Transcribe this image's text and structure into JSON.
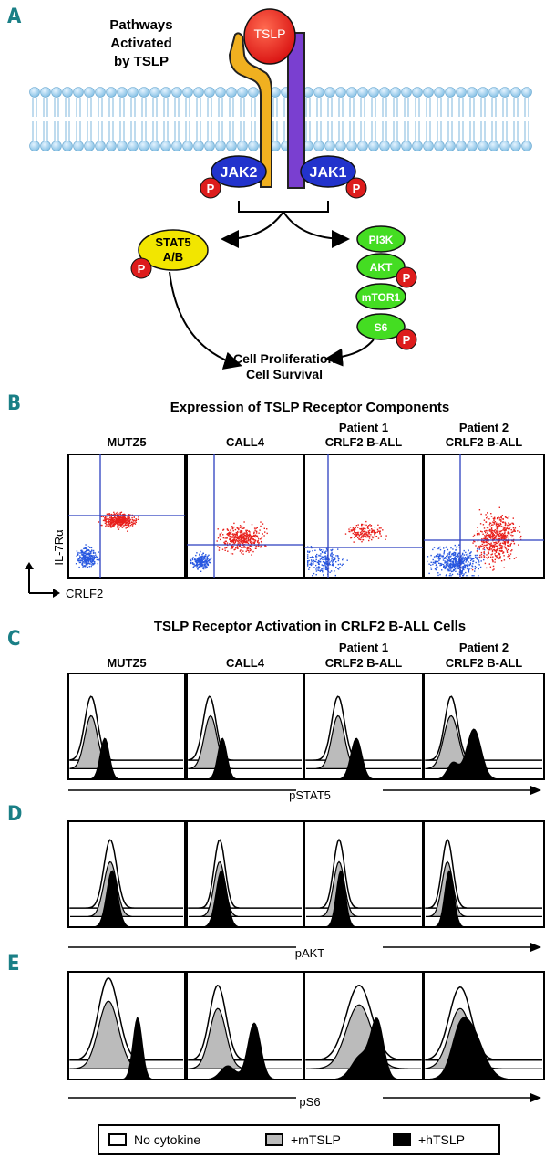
{
  "panels": {
    "A": "A",
    "B": "B",
    "C": "C",
    "D": "D",
    "E": "E"
  },
  "panel_a": {
    "title_lines": [
      "Pathways",
      "Activated",
      "by TSLP"
    ],
    "ligand": "TSLP",
    "kinases": [
      "JAK2",
      "JAK1"
    ],
    "stat": [
      "STAT5",
      "A/B"
    ],
    "cascade": [
      "PI3K",
      "AKT",
      "mTOR1",
      "S6"
    ],
    "phospho": "P",
    "outcome": [
      "Cell Proliferation",
      "Cell Survival"
    ]
  },
  "panel_b": {
    "title": "Expression of TSLP Receptor Components",
    "samples": [
      {
        "line1": "",
        "line2": "MUTZ5"
      },
      {
        "line1": "",
        "line2": "CALL4"
      },
      {
        "line1": "Patient 1",
        "line2": "CRLF2 B-ALL"
      },
      {
        "line1": "Patient 2",
        "line2": "CRLF2 B-ALL"
      }
    ],
    "y_axis": "IL-7Rα",
    "x_axis": "CRLF2"
  },
  "panel_c": {
    "title": "TSLP Receptor Activation in CRLF2 B-ALL Cells",
    "samples": [
      {
        "line1": "",
        "line2": "MUTZ5"
      },
      {
        "line1": "",
        "line2": "CALL4"
      },
      {
        "line1": "Patient 1",
        "line2": "CRLF2 B-ALL"
      },
      {
        "line1": "Patient 2",
        "line2": "CRLF2 B-ALL"
      }
    ],
    "x_axis": "pSTAT5"
  },
  "panel_d": {
    "x_axis": "pAKT"
  },
  "panel_e": {
    "x_axis": "pS6"
  },
  "legend": {
    "items": [
      "No cytokine",
      "+mTSLP",
      "+hTSLP"
    ],
    "colors": [
      "#ffffff",
      "#bbbbbb",
      "#000000"
    ]
  },
  "colors": {
    "teal": "#1a7f86",
    "jak": "#2233cc",
    "stat": "#f2e600",
    "cascade": "#44dd22",
    "p": "#dd1c1c",
    "tslp": "#e01818",
    "chain_yellow": "#f0b020",
    "chain_purple": "#7a3fd0",
    "membrane": "#9ed0ee",
    "scatter_red": "#e8201c",
    "scatter_blue": "#2858e0",
    "gate": "#2b3fbf"
  }
}
